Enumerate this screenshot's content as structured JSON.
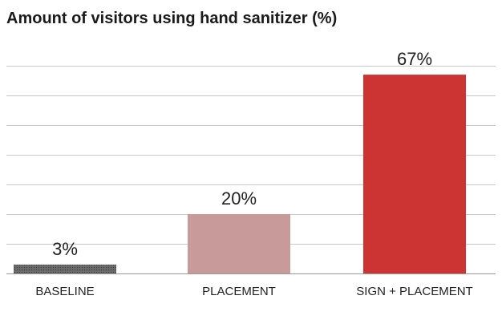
{
  "chart_data": {
    "type": "bar",
    "title": "Amount of visitors using hand sanitizer (%)",
    "categories": [
      "BASELINE",
      "PLACEMENT",
      "SIGN + PLACEMENT"
    ],
    "values": [
      3,
      20,
      67
    ],
    "value_labels": [
      "3%",
      "20%",
      "67%"
    ],
    "ylim": [
      0,
      70
    ],
    "grid": true,
    "colors": [
      "#555555",
      "#c99a9a",
      "#cc3333"
    ]
  }
}
